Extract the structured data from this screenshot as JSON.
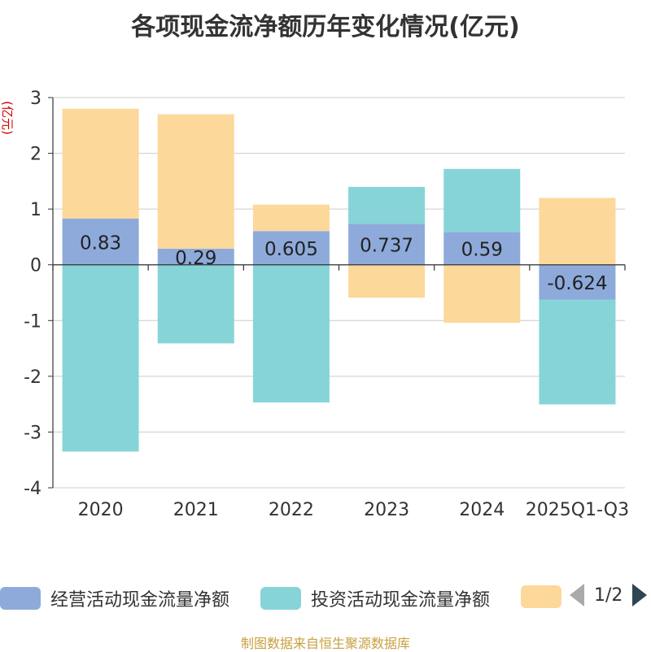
{
  "title": "各项现金流净额历年变化情况(亿元)",
  "source": "制图数据来自恒生聚源数据库",
  "pager": {
    "text": "1/2"
  },
  "chart_data": {
    "type": "bar",
    "stacked": true,
    "y_axis_label": "(亿元)",
    "ylim": [
      -4,
      3
    ],
    "yticks": [
      3,
      2,
      1,
      0,
      -1,
      -2,
      -3,
      -4
    ],
    "categories": [
      "2020",
      "2021",
      "2022",
      "2023",
      "2024",
      "2025Q1-Q3"
    ],
    "series": [
      {
        "name": "经营活动现金流量净额",
        "color": "#8eaadb",
        "values": [
          0.83,
          0.29,
          0.605,
          0.737,
          0.59,
          -0.624
        ],
        "labels": [
          "0.83",
          "0.29",
          "0.605",
          "0.737",
          "0.59",
          "-0.624"
        ],
        "show_labels": true
      },
      {
        "name": "投资活动现金流量净额",
        "color": "#86d4d8",
        "values": [
          -3.35,
          -1.41,
          -2.47,
          0.66,
          1.13,
          -1.88
        ],
        "show_labels": false
      },
      {
        "name": "",
        "color": "#fdd89b",
        "values": [
          1.97,
          2.41,
          0.475,
          -0.59,
          -1.04,
          1.2
        ],
        "show_labels": false
      }
    ],
    "legend_position": "bottom"
  }
}
